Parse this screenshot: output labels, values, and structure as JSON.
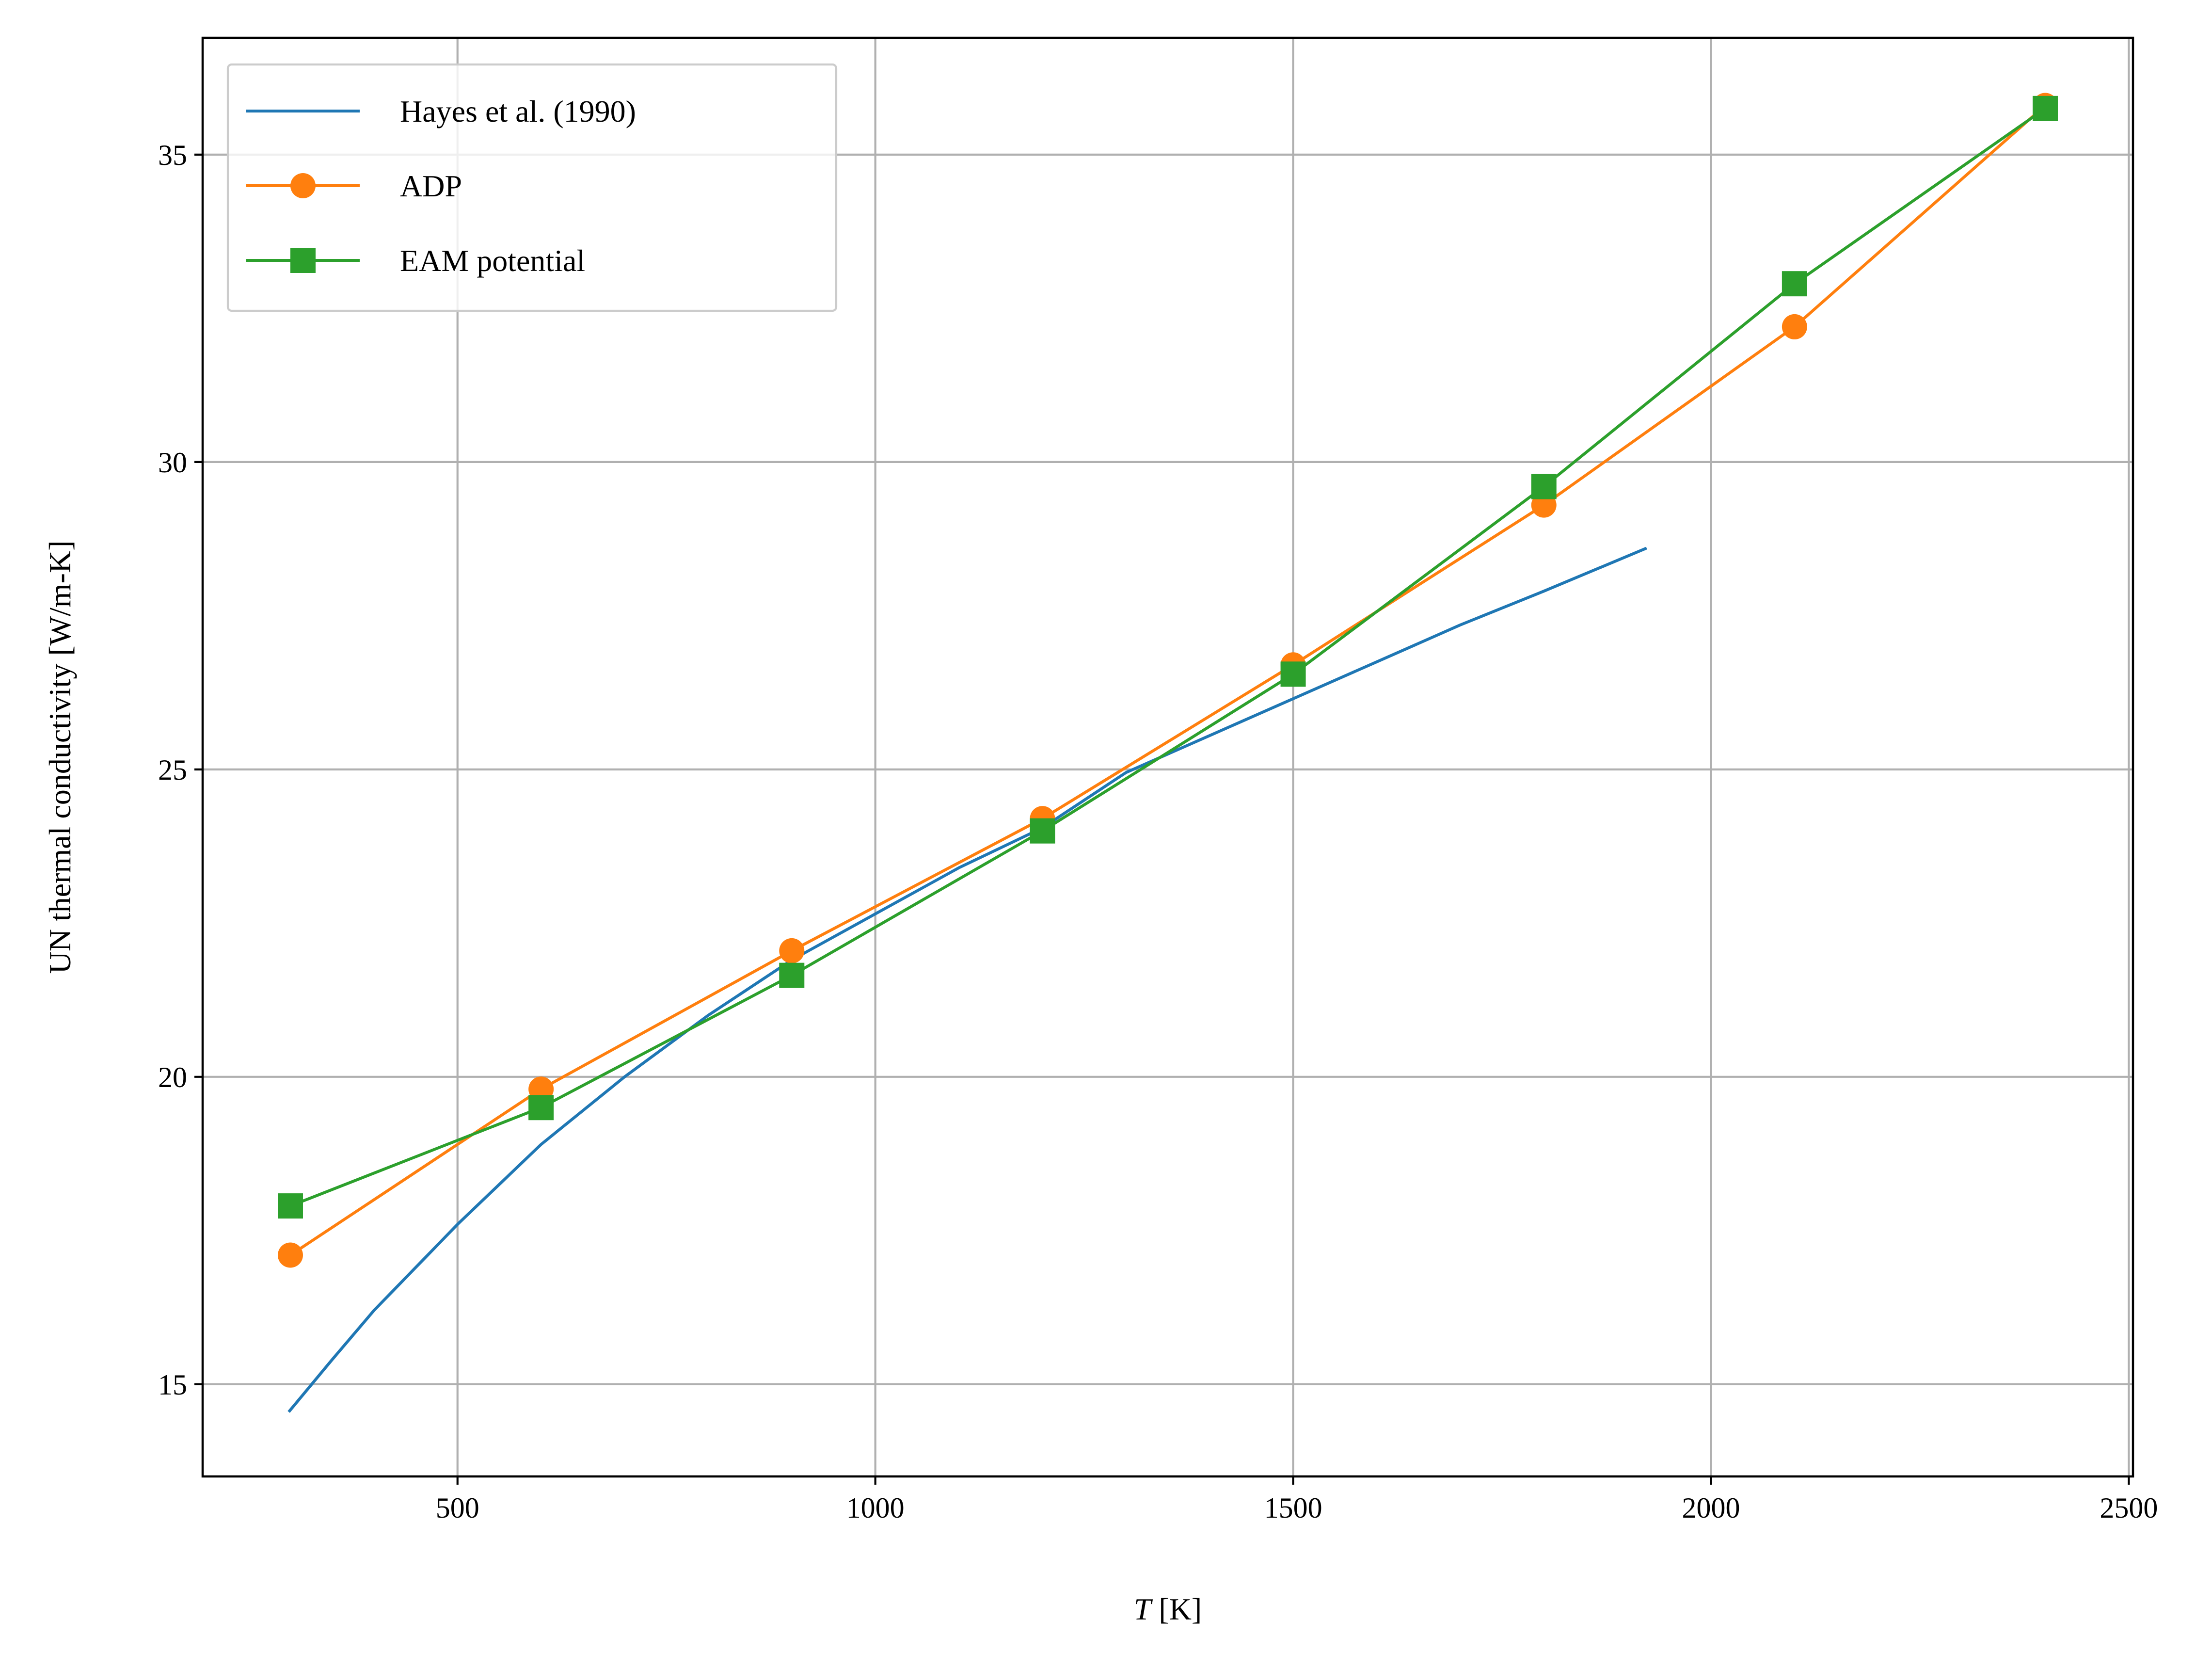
{
  "chart_data": {
    "type": "line",
    "title": "",
    "xlabel": {
      "var": "T",
      "unit": " [K]"
    },
    "ylabel": "UN thermal conductivity [W/m-K]",
    "xlim": [
      195,
      2505
    ],
    "ylim": [
      13.5,
      36.9
    ],
    "xticks": [
      "500",
      "1000",
      "1500",
      "2000",
      "2500"
    ],
    "xtick_values": [
      500,
      1000,
      1500,
      2000,
      2500
    ],
    "yticks": [
      "15",
      "20",
      "25",
      "30",
      "35"
    ],
    "ytick_values": [
      15,
      20,
      25,
      30,
      35
    ],
    "grid": true,
    "legend_position": "upper-left",
    "series": [
      {
        "name": "Hayes et al. (1990)",
        "color": "#1f77b4",
        "marker": "none",
        "x": [
          298,
          350,
          400,
          450,
          500,
          600,
          700,
          800,
          900,
          1000,
          1100,
          1200,
          1300,
          1400,
          1500,
          1600,
          1700,
          1800,
          1923
        ],
        "y": [
          14.55,
          15.4,
          16.2,
          16.9,
          17.6,
          18.9,
          20.0,
          21.0,
          21.9,
          22.65,
          23.4,
          24.05,
          24.95,
          25.55,
          26.15,
          26.75,
          27.35,
          27.9,
          28.6
        ]
      },
      {
        "name": "ADP",
        "color": "#ff7f0e",
        "marker": "circle",
        "x": [
          300,
          600,
          900,
          1200,
          1500,
          1800,
          2100,
          2400
        ],
        "y": [
          17.1,
          19.8,
          22.05,
          24.2,
          26.7,
          29.3,
          32.2,
          35.8
        ]
      },
      {
        "name": "EAM potential",
        "color": "#2ca02c",
        "marker": "square",
        "x": [
          300,
          600,
          900,
          1200,
          1500,
          1800,
          2100,
          2400
        ],
        "y": [
          17.9,
          19.5,
          21.65,
          24.0,
          26.55,
          29.6,
          32.9,
          35.75
        ]
      }
    ]
  }
}
